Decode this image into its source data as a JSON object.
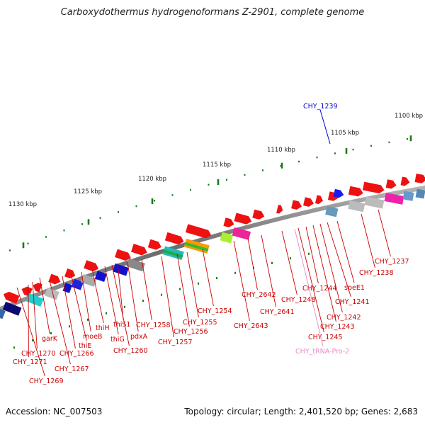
{
  "title": "Carboxydothermus hydrogenoformans Z-2901, complete genome",
  "footer": {
    "accession": "Accession: NC_007503",
    "summary": "Topology: circular; Length: 2,401,520 bp; Genes: 2,683"
  },
  "kbp_ticks": [
    "1100 kbp",
    "1105 kbp",
    "1110 kbp",
    "1115 kbp",
    "1120 kbp",
    "1125 kbp",
    "1130 kbp"
  ],
  "colors": {
    "gene_label": "#cc0000",
    "highlight_label": "#0000cc",
    "trna_label": "#e88ac8",
    "backbone": "#888888",
    "tick": "#1a7a1a"
  },
  "highlight_gene": "CHY_1239",
  "gene_labels": [
    "CHY_1237",
    "CHY_1238",
    "speE1",
    "CHY_1241",
    "CHY_1242",
    "CHY_1243",
    "CHY_1244",
    "CHY_1245",
    "CHY_tRNA-Pro-2",
    "CHY_1248",
    "CHY_2641",
    "CHY_2642",
    "CHY_2643",
    "CHY_1254",
    "CHY_1255",
    "CHY_1256",
    "CHY_1257",
    "CHY_1258",
    "pdxA",
    "thiS1",
    "CHY_1260",
    "thiG",
    "thiH",
    "moeB",
    "thiE",
    "garK",
    "CHY_1266",
    "CHY_1267",
    "CHY_1270",
    "CHY_1271",
    "CHY_1269"
  ]
}
